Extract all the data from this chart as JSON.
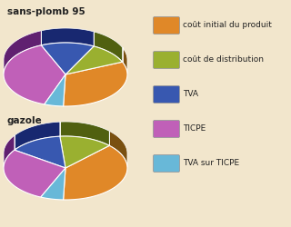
{
  "background_color": "#f2e6cc",
  "title1": "sans-plomb 95",
  "title2": "gazole",
  "colors": [
    "#e08828",
    "#9ab030",
    "#3858b0",
    "#c060b8",
    "#68b8d8"
  ],
  "dark_colors": [
    "#7a5010",
    "#506010",
    "#182870",
    "#602070",
    "#307090"
  ],
  "sp95_values": [
    32,
    11,
    14,
    38,
    5
  ],
  "gazole_values": [
    38,
    14,
    14,
    28,
    6
  ],
  "legend_labels": [
    "coût initial du produit",
    "coût de distribution",
    "TVA",
    "TICPE",
    "TVA sur TICPE"
  ],
  "title_fontsize": 7.5,
  "legend_fontsize": 6.5,
  "start_angle": 92
}
